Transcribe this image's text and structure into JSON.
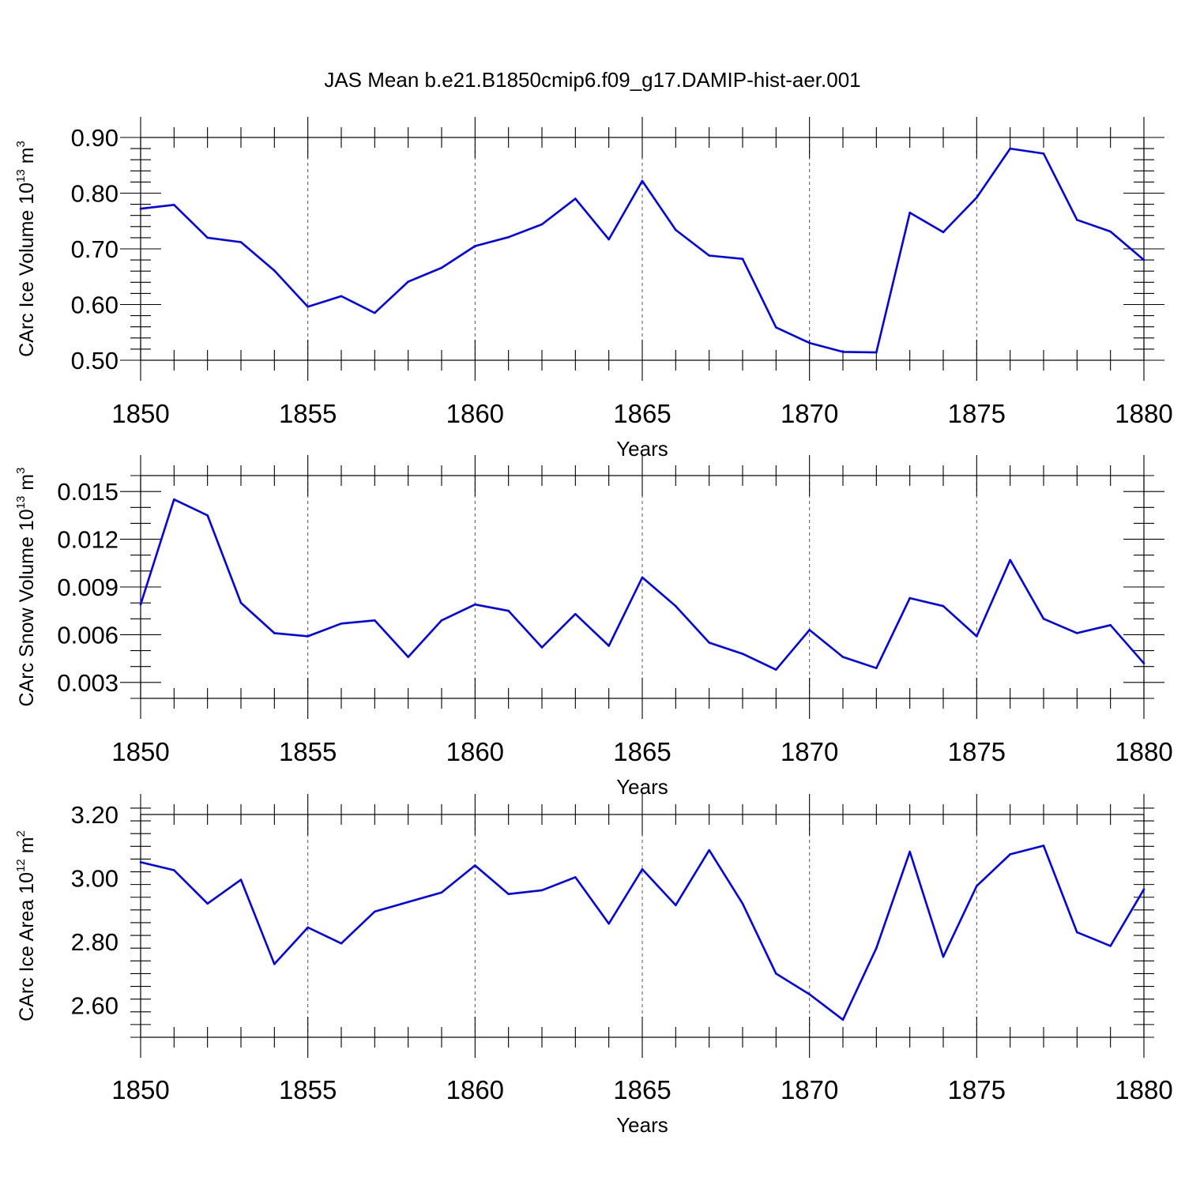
{
  "title": "JAS Mean b.e21.B1850cmip6.f09_g17.DAMIP-hist-aer.001",
  "colors": {
    "line": "#0000ff",
    "axis": "#000000",
    "grid": "#555555"
  },
  "chart_data": [
    {
      "type": "line",
      "id": "ice-volume",
      "ylabel": {
        "main": "CArc Ice Volume 10",
        "exp": "13",
        "unit": " m",
        "unit_exp": "3"
      },
      "xlabel": "Years",
      "xlim": [
        1850,
        1880
      ],
      "ylim": [
        0.5,
        0.9
      ],
      "x_ticks": [
        1850,
        1855,
        1860,
        1865,
        1870,
        1875,
        1880
      ],
      "x_tick_labels": [
        "1850",
        "1855",
        "1860",
        "1865",
        "1870",
        "1875",
        "1880"
      ],
      "x_minor_step": 1,
      "y_ticks": [
        0.5,
        0.6,
        0.7,
        0.8,
        0.9
      ],
      "y_tick_labels": [
        "0.50",
        "0.60",
        "0.70",
        "0.80",
        "0.90"
      ],
      "y_minor_step": 0.02,
      "grid": "vertical-dashed-at-major-ticks",
      "x": [
        1850,
        1851,
        1852,
        1853,
        1854,
        1855,
        1856,
        1857,
        1858,
        1859,
        1860,
        1861,
        1862,
        1863,
        1864,
        1865,
        1866,
        1867,
        1868,
        1869,
        1870,
        1871,
        1872,
        1873,
        1874,
        1875,
        1876,
        1877,
        1878,
        1879,
        1880
      ],
      "y": [
        0.772,
        0.779,
        0.72,
        0.712,
        0.661,
        0.596,
        0.615,
        0.585,
        0.641,
        0.666,
        0.705,
        0.721,
        0.744,
        0.79,
        0.717,
        0.822,
        0.734,
        0.688,
        0.682,
        0.559,
        0.531,
        0.515,
        0.514,
        0.765,
        0.73,
        0.792,
        0.88,
        0.871,
        0.752,
        0.731,
        0.68
      ]
    },
    {
      "type": "line",
      "id": "snow-volume",
      "ylabel": {
        "main": "CArc Snow Volume 10",
        "exp": "13",
        "unit": " m",
        "unit_exp": "3"
      },
      "xlabel": "Years",
      "xlim": [
        1850,
        1880
      ],
      "ylim": [
        0.002,
        0.016
      ],
      "x_ticks": [
        1850,
        1855,
        1860,
        1865,
        1870,
        1875,
        1880
      ],
      "x_tick_labels": [
        "1850",
        "1855",
        "1860",
        "1865",
        "1870",
        "1875",
        "1880"
      ],
      "x_minor_step": 1,
      "y_ticks": [
        0.003,
        0.006,
        0.009,
        0.012,
        0.015
      ],
      "y_tick_labels": [
        "0.003",
        "0.006",
        "0.009",
        "0.012",
        "0.015"
      ],
      "y_minor_step": 0.001,
      "grid": "vertical-dashed-at-major-ticks",
      "x": [
        1850,
        1851,
        1852,
        1853,
        1854,
        1855,
        1856,
        1857,
        1858,
        1859,
        1860,
        1861,
        1862,
        1863,
        1864,
        1865,
        1866,
        1867,
        1868,
        1869,
        1870,
        1871,
        1872,
        1873,
        1874,
        1875,
        1876,
        1877,
        1878,
        1879,
        1880
      ],
      "y": [
        0.0079,
        0.0145,
        0.0135,
        0.008,
        0.0061,
        0.0059,
        0.0067,
        0.0069,
        0.0046,
        0.0069,
        0.0079,
        0.0075,
        0.0052,
        0.0073,
        0.0053,
        0.0096,
        0.0078,
        0.0055,
        0.0048,
        0.0038,
        0.0063,
        0.0046,
        0.0039,
        0.0083,
        0.0078,
        0.0059,
        0.0107,
        0.007,
        0.0061,
        0.0066,
        0.0042
      ]
    },
    {
      "type": "line",
      "id": "ice-area",
      "ylabel": {
        "main": "CArc Ice Area 10",
        "exp": "12",
        "unit": " m",
        "unit_exp": "2"
      },
      "xlabel": "Years",
      "xlim": [
        1850,
        1880
      ],
      "ylim": [
        2.5,
        3.2
      ],
      "x_ticks": [
        1850,
        1855,
        1860,
        1865,
        1870,
        1875,
        1880
      ],
      "x_tick_labels": [
        "1850",
        "1855",
        "1860",
        "1865",
        "1870",
        "1875",
        "1880"
      ],
      "x_minor_step": 1,
      "y_ticks": [
        2.6,
        2.8,
        3.0,
        3.2
      ],
      "y_tick_labels": [
        "2.60",
        "2.80",
        "3.00",
        "3.20"
      ],
      "y_minor_step": 0.04,
      "grid": "vertical-dashed-at-major-ticks",
      "x": [
        1850,
        1851,
        1852,
        1853,
        1854,
        1855,
        1856,
        1857,
        1858,
        1859,
        1860,
        1861,
        1862,
        1863,
        1864,
        1865,
        1866,
        1867,
        1868,
        1869,
        1870,
        1871,
        1872,
        1873,
        1874,
        1875,
        1876,
        1877,
        1878,
        1879,
        1880
      ],
      "y": [
        3.05,
        3.025,
        2.92,
        2.995,
        2.73,
        2.845,
        2.795,
        2.895,
        2.925,
        2.955,
        3.04,
        2.95,
        2.962,
        3.003,
        2.857,
        3.028,
        2.915,
        3.088,
        2.92,
        2.7,
        2.635,
        2.555,
        2.78,
        3.083,
        2.753,
        2.975,
        3.075,
        3.102,
        2.83,
        2.787,
        2.965
      ]
    }
  ]
}
